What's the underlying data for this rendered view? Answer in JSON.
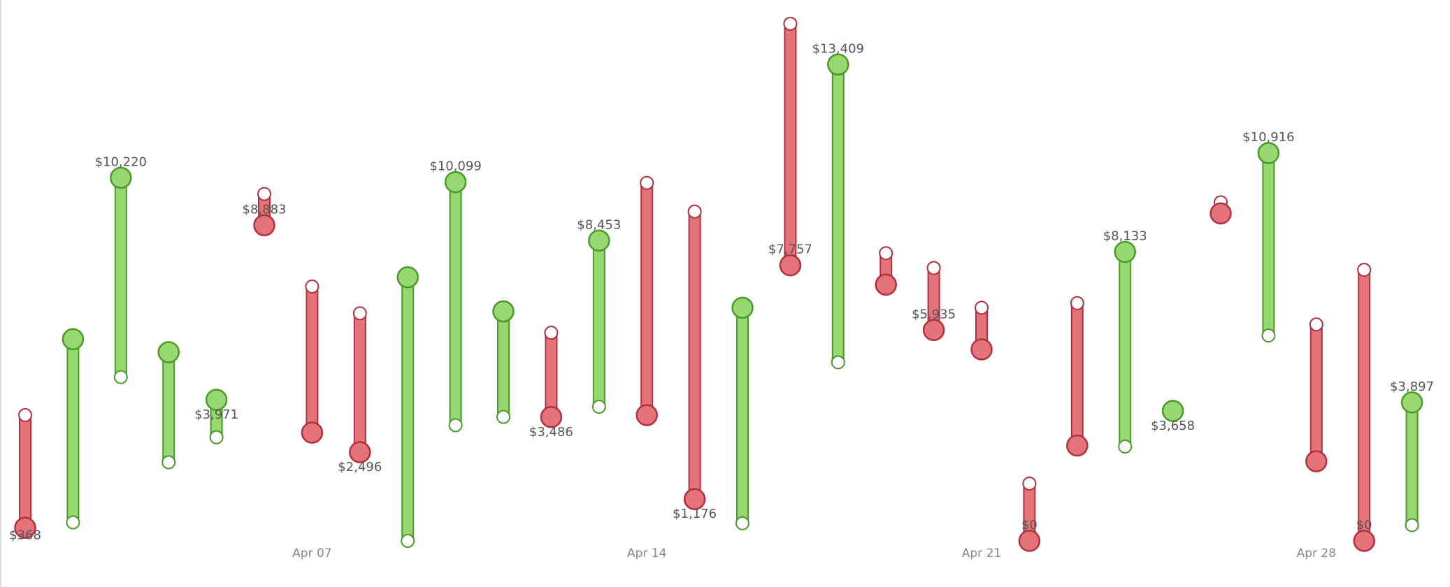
{
  "chart_data": {
    "type": "range-bar",
    "categories": [
      null,
      null,
      null,
      null,
      null,
      null,
      "Apr 07",
      null,
      null,
      null,
      null,
      null,
      null,
      "Apr 14",
      null,
      null,
      null,
      null,
      null,
      null,
      "Apr 21",
      null,
      null,
      null,
      null,
      null,
      null,
      "Apr 28",
      null,
      null
    ],
    "series": [
      {
        "color": "#ffffff",
        "values": [
          3541,
          521,
          4609,
          2213,
          2916,
          9765,
          7161,
          6406,
          0,
          3255,
          3489,
          5859,
          3776,
          10077,
          9270,
          495,
          14556,
          5026,
          8098,
          7682,
          6562,
          1614,
          6692,
          2656,
          3658,
          9531,
          5781,
          6093,
          7630,
          443
        ]
      },
      {
        "color": "#98d870",
        "values": [
          368,
          5677,
          10220,
          5312,
          3971,
          8883,
          3047,
          2496,
          7421,
          10099,
          6458,
          3486,
          8453,
          3541,
          1176,
          6562,
          7757,
          13409,
          7213,
          5935,
          5390,
          0,
          2682,
          8133,
          3658,
          9218,
          10916,
          2239,
          0,
          3897
        ],
        "value_labels": [
          "$368",
          null,
          "$10,220",
          null,
          "$3,971",
          "$8,883",
          null,
          "$2,496",
          null,
          "$10,099",
          null,
          "$3,486",
          "$8,453",
          null,
          "$1,176",
          null,
          "$7,757",
          "$13,409",
          null,
          "$5,935",
          null,
          "$0",
          null,
          "$8,133",
          "$3,658",
          null,
          "$10,916",
          null,
          "$0",
          "$3,897"
        ]
      }
    ],
    "down_color": "#e5737a"
  }
}
